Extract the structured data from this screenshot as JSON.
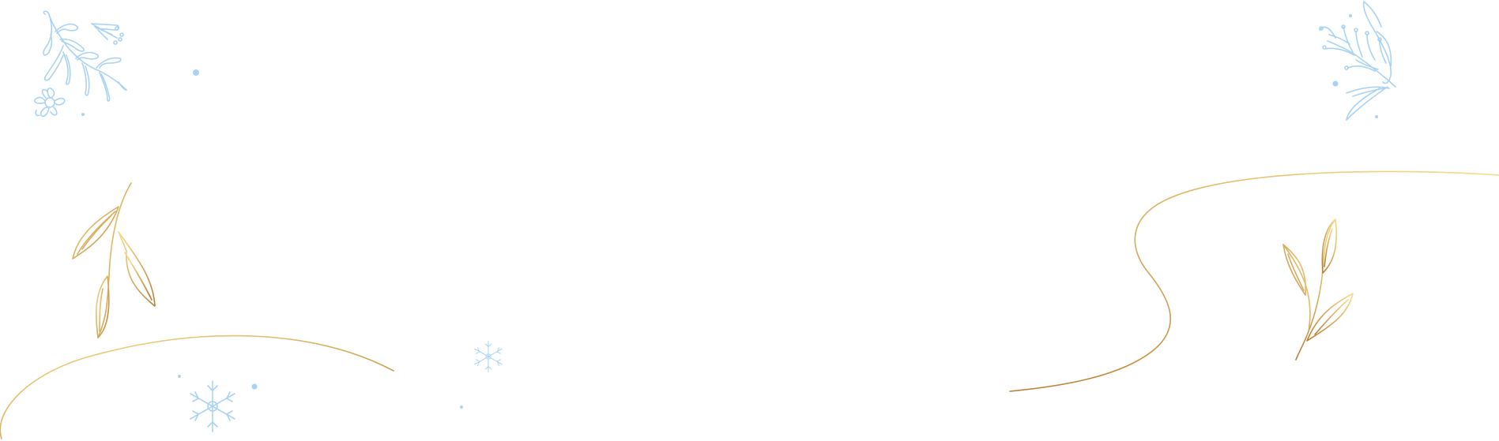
{
  "palette": {
    "background": "#ffffff",
    "blue": "#a9d3f2",
    "gold_light": "#f6dd8a",
    "gold_dark": "#b97d33"
  },
  "decorations": [
    "blue-floral-sprig-icon",
    "blue-flower-icon",
    "blue-leafy-branch-icon",
    "gold-leaf-sprig-icon",
    "gold-swirl-line",
    "snowflake-icon",
    "blue-dot"
  ]
}
